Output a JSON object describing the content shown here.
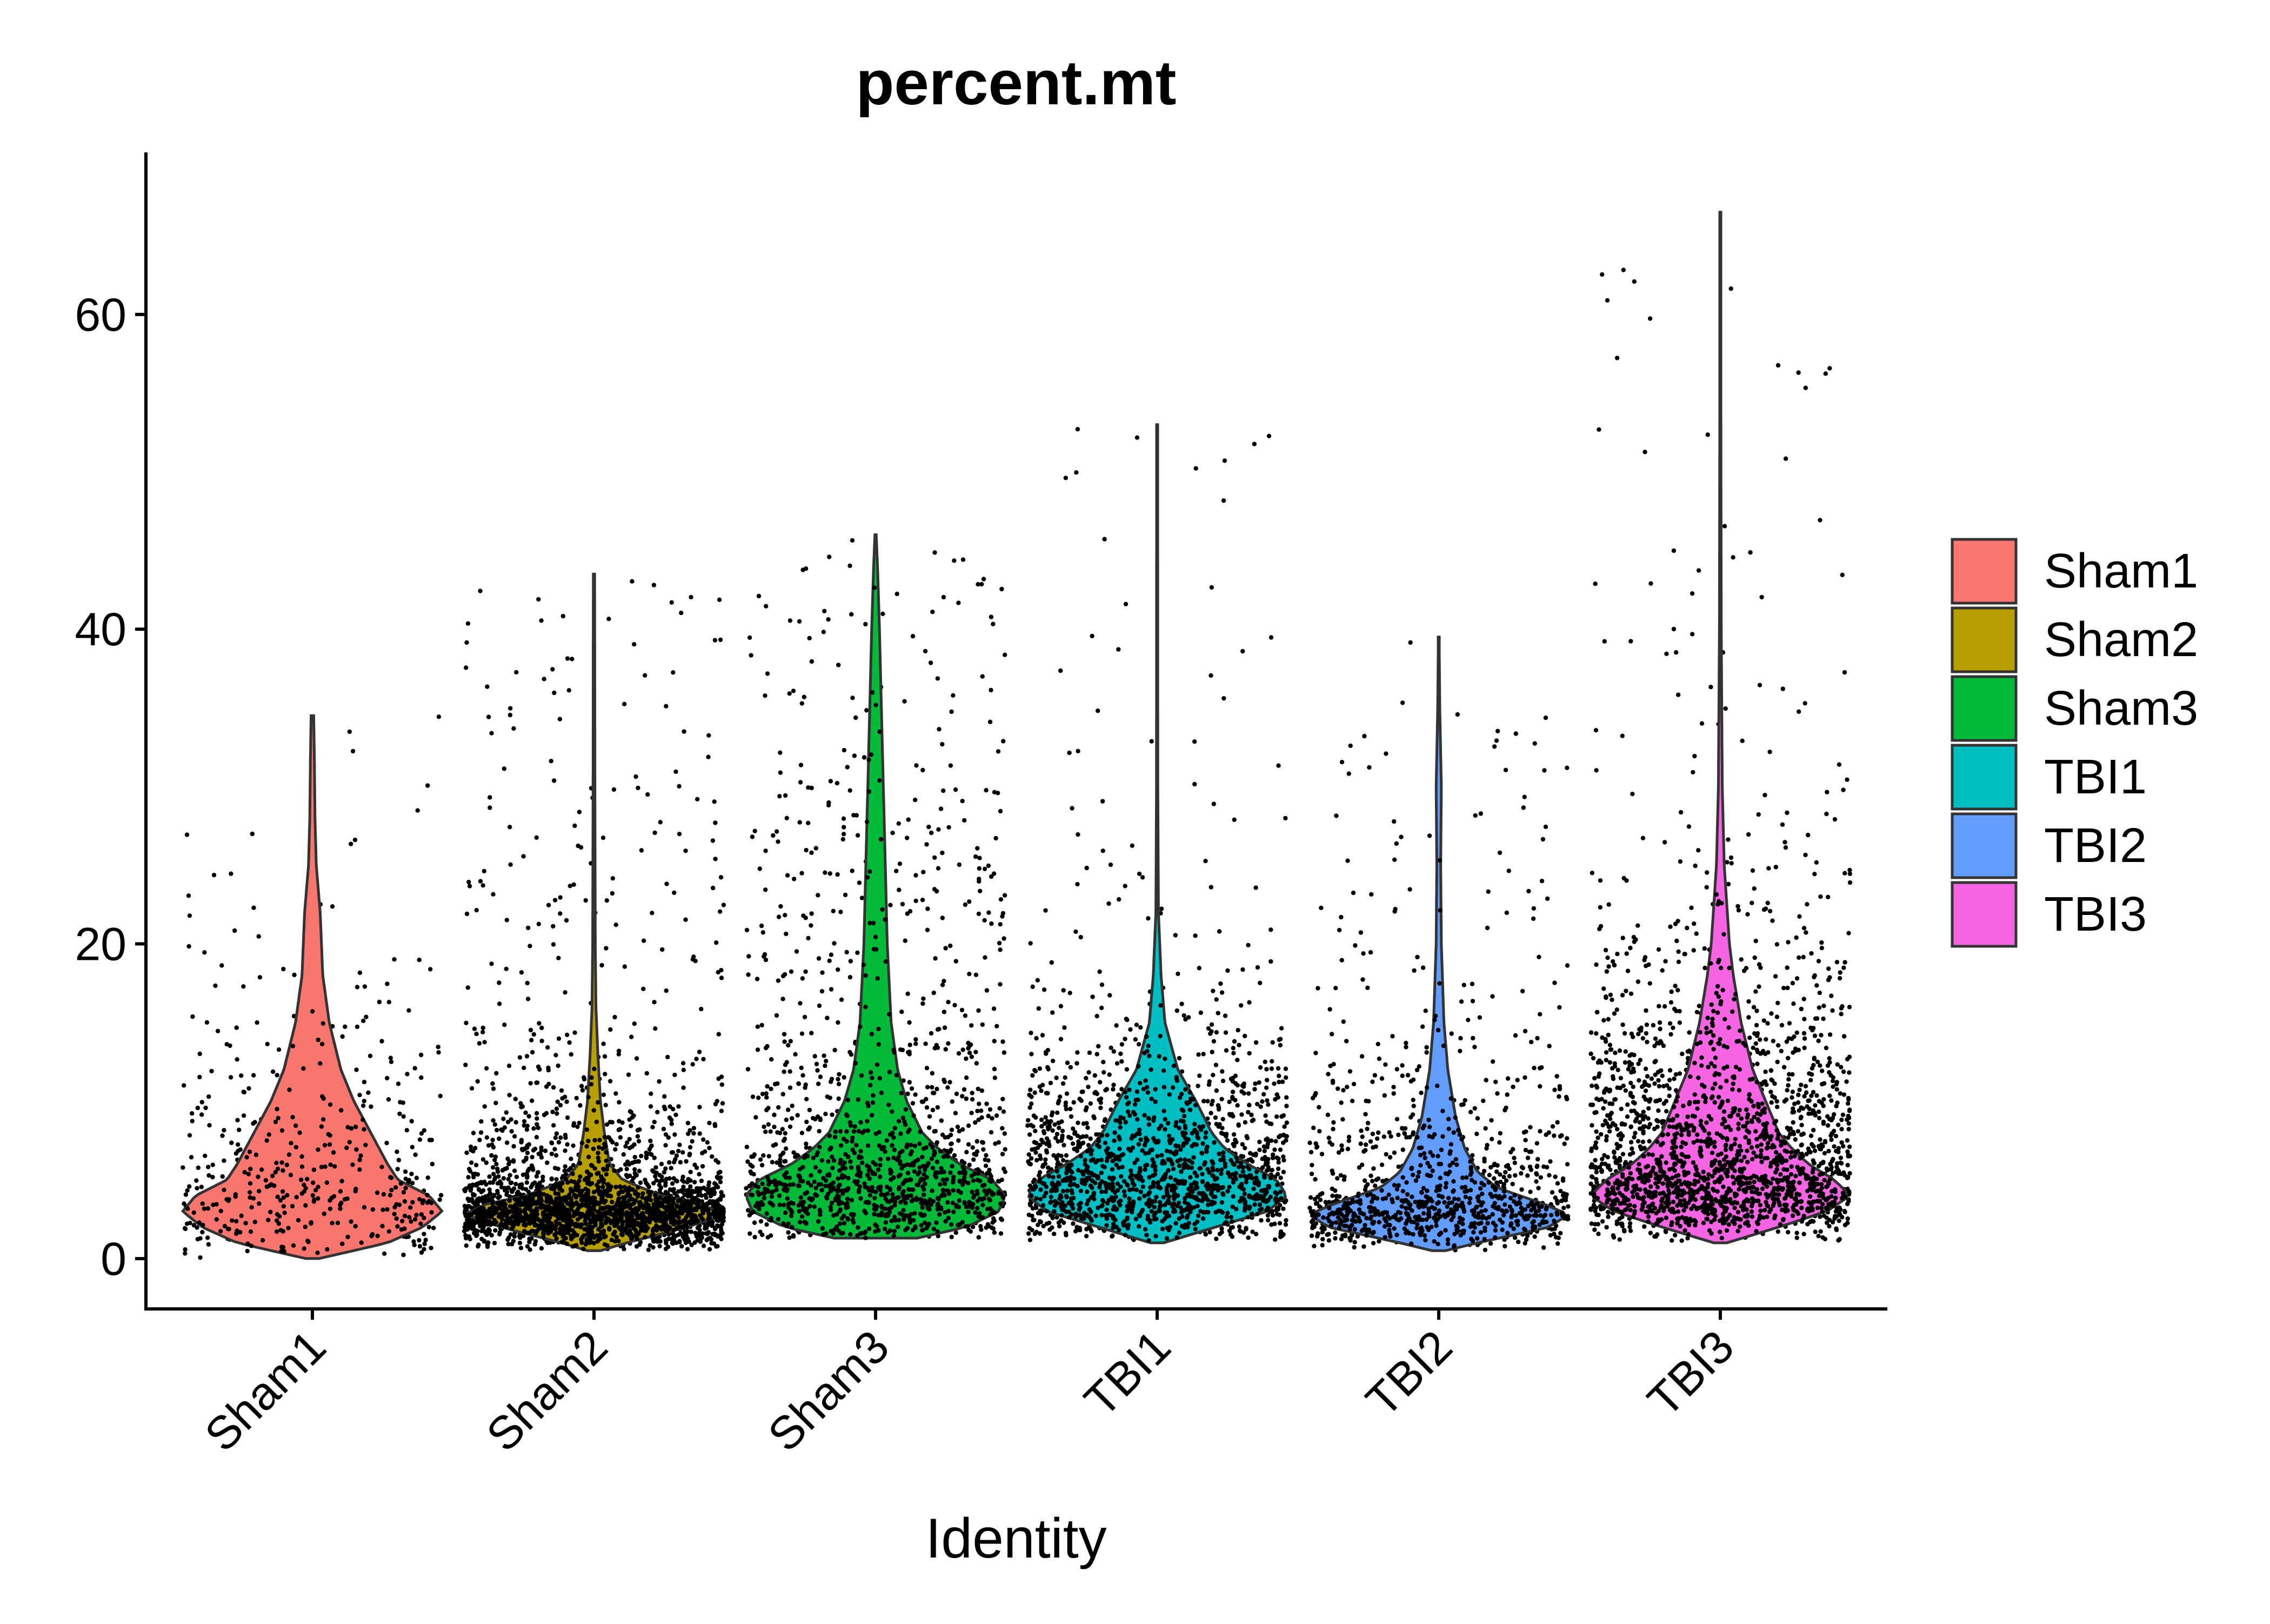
{
  "chart_data": {
    "type": "violin",
    "title": "percent.mt",
    "xlabel": "Identity",
    "ylabel": "",
    "ylim": [
      -3.2,
      70.3
    ],
    "yticks": [
      0,
      20,
      40,
      60
    ],
    "categories": [
      "Sham1",
      "Sham2",
      "Sham3",
      "TBI1",
      "TBI2",
      "TBI3"
    ],
    "legend": {
      "position": "right",
      "entries": [
        "Sham1",
        "Sham2",
        "Sham3",
        "TBI1",
        "TBI2",
        "TBI3"
      ]
    },
    "colors": {
      "Sham1": "#F8766D",
      "Sham2": "#B79F00",
      "Sham3": "#00BA38",
      "TBI1": "#00BFC4",
      "TBI2": "#619CFF",
      "TBI3": "#F564E3"
    },
    "grid": false,
    "series": [
      {
        "name": "Sham1",
        "min": 0.0,
        "max": 34.5,
        "point_count": 420,
        "density": [
          [
            0.0,
            0.05
          ],
          [
            1.0,
            0.58
          ],
          [
            2.0,
            0.85
          ],
          [
            3.0,
            1.0
          ],
          [
            4.0,
            0.9
          ],
          [
            5.0,
            0.66
          ],
          [
            6.0,
            0.58
          ],
          [
            8.0,
            0.45
          ],
          [
            10.0,
            0.32
          ],
          [
            12.0,
            0.22
          ],
          [
            15.0,
            0.13
          ],
          [
            18.0,
            0.08
          ],
          [
            22.0,
            0.06
          ],
          [
            25.0,
            0.03
          ],
          [
            28.0,
            0.02
          ],
          [
            32.0,
            0.015
          ],
          [
            34.5,
            0.01
          ]
        ]
      },
      {
        "name": "Sham2",
        "min": 0.5,
        "max": 43.5,
        "point_count": 2300,
        "density": [
          [
            0.5,
            0.05
          ],
          [
            1.0,
            0.25
          ],
          [
            2.0,
            0.72
          ],
          [
            2.8,
            1.0
          ],
          [
            3.5,
            0.82
          ],
          [
            4.0,
            0.52
          ],
          [
            5.0,
            0.22
          ],
          [
            6.0,
            0.12
          ],
          [
            8.0,
            0.08
          ],
          [
            10.0,
            0.05
          ],
          [
            13.0,
            0.03
          ],
          [
            16.0,
            0.015
          ],
          [
            20.0,
            0.01
          ],
          [
            30.0,
            0.007
          ],
          [
            43.5,
            0.005
          ]
        ]
      },
      {
        "name": "Sham3",
        "min": 1.3,
        "max": 46.0,
        "point_count": 1300,
        "density": [
          [
            1.3,
            0.32
          ],
          [
            2.0,
            0.7
          ],
          [
            3.0,
            0.95
          ],
          [
            4.0,
            1.0
          ],
          [
            5.0,
            0.9
          ],
          [
            6.0,
            0.65
          ],
          [
            7.0,
            0.48
          ],
          [
            8.0,
            0.36
          ],
          [
            10.0,
            0.24
          ],
          [
            12.0,
            0.17
          ],
          [
            15.0,
            0.12
          ],
          [
            20.0,
            0.09
          ],
          [
            25.0,
            0.075
          ],
          [
            30.0,
            0.06
          ],
          [
            35.0,
            0.045
          ],
          [
            40.0,
            0.03
          ],
          [
            44.0,
            0.015
          ],
          [
            46.0,
            0.005
          ]
        ]
      },
      {
        "name": "TBI1",
        "min": 1.0,
        "max": 53.0,
        "point_count": 1500,
        "density": [
          [
            1.0,
            0.05
          ],
          [
            2.0,
            0.45
          ],
          [
            3.0,
            0.85
          ],
          [
            4.0,
            1.0
          ],
          [
            5.0,
            0.92
          ],
          [
            6.0,
            0.7
          ],
          [
            7.0,
            0.52
          ],
          [
            8.0,
            0.42
          ],
          [
            10.0,
            0.3
          ],
          [
            12.0,
            0.16
          ],
          [
            15.0,
            0.06
          ],
          [
            18.0,
            0.03
          ],
          [
            22.0,
            0.01
          ],
          [
            30.0,
            0.005
          ],
          [
            53.0,
            0.004
          ]
        ]
      },
      {
        "name": "TBI2",
        "min": 0.5,
        "max": 39.5,
        "point_count": 1000,
        "density": [
          [
            0.5,
            0.05
          ],
          [
            1.0,
            0.3
          ],
          [
            2.0,
            0.85
          ],
          [
            2.8,
            1.0
          ],
          [
            3.5,
            0.8
          ],
          [
            4.5,
            0.45
          ],
          [
            5.5,
            0.3
          ],
          [
            7.0,
            0.2
          ],
          [
            9.0,
            0.13
          ],
          [
            12.0,
            0.07
          ],
          [
            15.0,
            0.04
          ],
          [
            20.0,
            0.02
          ],
          [
            25.0,
            0.015
          ],
          [
            30.0,
            0.02
          ],
          [
            35.0,
            0.008
          ],
          [
            39.5,
            0.003
          ]
        ]
      },
      {
        "name": "TBI3",
        "min": 1.0,
        "max": 66.5,
        "point_count": 2000,
        "density": [
          [
            1.0,
            0.05
          ],
          [
            2.0,
            0.45
          ],
          [
            3.0,
            0.82
          ],
          [
            4.0,
            1.0
          ],
          [
            5.0,
            0.88
          ],
          [
            6.0,
            0.68
          ],
          [
            7.0,
            0.55
          ],
          [
            8.0,
            0.45
          ],
          [
            10.0,
            0.35
          ],
          [
            12.0,
            0.25
          ],
          [
            15.0,
            0.16
          ],
          [
            18.0,
            0.1
          ],
          [
            20.0,
            0.07
          ],
          [
            25.0,
            0.03
          ],
          [
            30.0,
            0.015
          ],
          [
            40.0,
            0.007
          ],
          [
            55.0,
            0.004
          ],
          [
            66.5,
            0.002
          ]
        ]
      }
    ]
  }
}
